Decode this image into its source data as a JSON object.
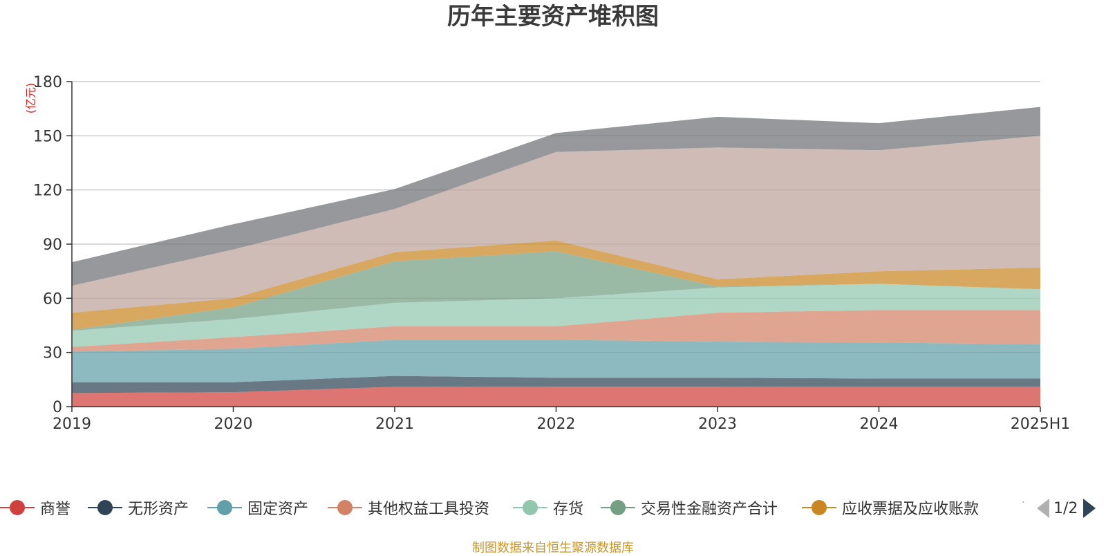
{
  "chart_data": {
    "type": "area",
    "stacked": true,
    "title": "历年主要资产堆积图",
    "ylabel": "(亿元)",
    "xlabel": "",
    "categories": [
      "2019",
      "2020",
      "2021",
      "2022",
      "2023",
      "2024",
      "2025H1"
    ],
    "ylim": [
      0,
      180
    ],
    "yticks": [
      "0",
      "30",
      "60",
      "90",
      "120",
      "150",
      "180"
    ],
    "grid": true,
    "series": [
      {
        "name": "商誉",
        "color": "#d0413d",
        "values": [
          7.5,
          8,
          11,
          11,
          11,
          11,
          11
        ]
      },
      {
        "name": "无形资产",
        "color": "#2f4456",
        "values": [
          6,
          5.5,
          6,
          5,
          5,
          4.5,
          4.5
        ]
      },
      {
        "name": "固定资产",
        "color": "#61a0a8",
        "values": [
          17,
          18.5,
          20,
          21,
          20,
          20,
          19
        ]
      },
      {
        "name": "其他权益工具投资",
        "color": "#d48266",
        "values": [
          2.5,
          6.5,
          7.5,
          7.5,
          16,
          18,
          19
        ]
      },
      {
        "name": "存货",
        "color": "#91c7ae",
        "values": [
          9,
          10,
          13,
          15.5,
          14,
          14.5,
          11.5
        ]
      },
      {
        "name": "交易性金融资产合计",
        "color": "#749f83",
        "values": [
          0.5,
          6.5,
          23,
          26,
          0.5,
          0,
          0
        ]
      },
      {
        "name": "应收票据及应收账款",
        "color": "#ca8622",
        "values": [
          9.5,
          5,
          5,
          6,
          4,
          7,
          12
        ]
      },
      {
        "name": "",
        "color": "#bda29a",
        "values": [
          15,
          27,
          24,
          49,
          73,
          67,
          73
        ]
      },
      {
        "name": "",
        "color": "#6e7074",
        "values": [
          13,
          14,
          11,
          10.5,
          17,
          15,
          16
        ]
      }
    ]
  },
  "legend": {
    "items": [
      "商誉",
      "无形资产",
      "固定资产",
      "其他权益工具投资",
      "存货",
      "交易性金融资产合计",
      "应收票据及应收账款"
    ],
    "dots": "·",
    "page": "1/2"
  },
  "footer": {
    "source": "制图数据来自恒生聚源数据库"
  }
}
